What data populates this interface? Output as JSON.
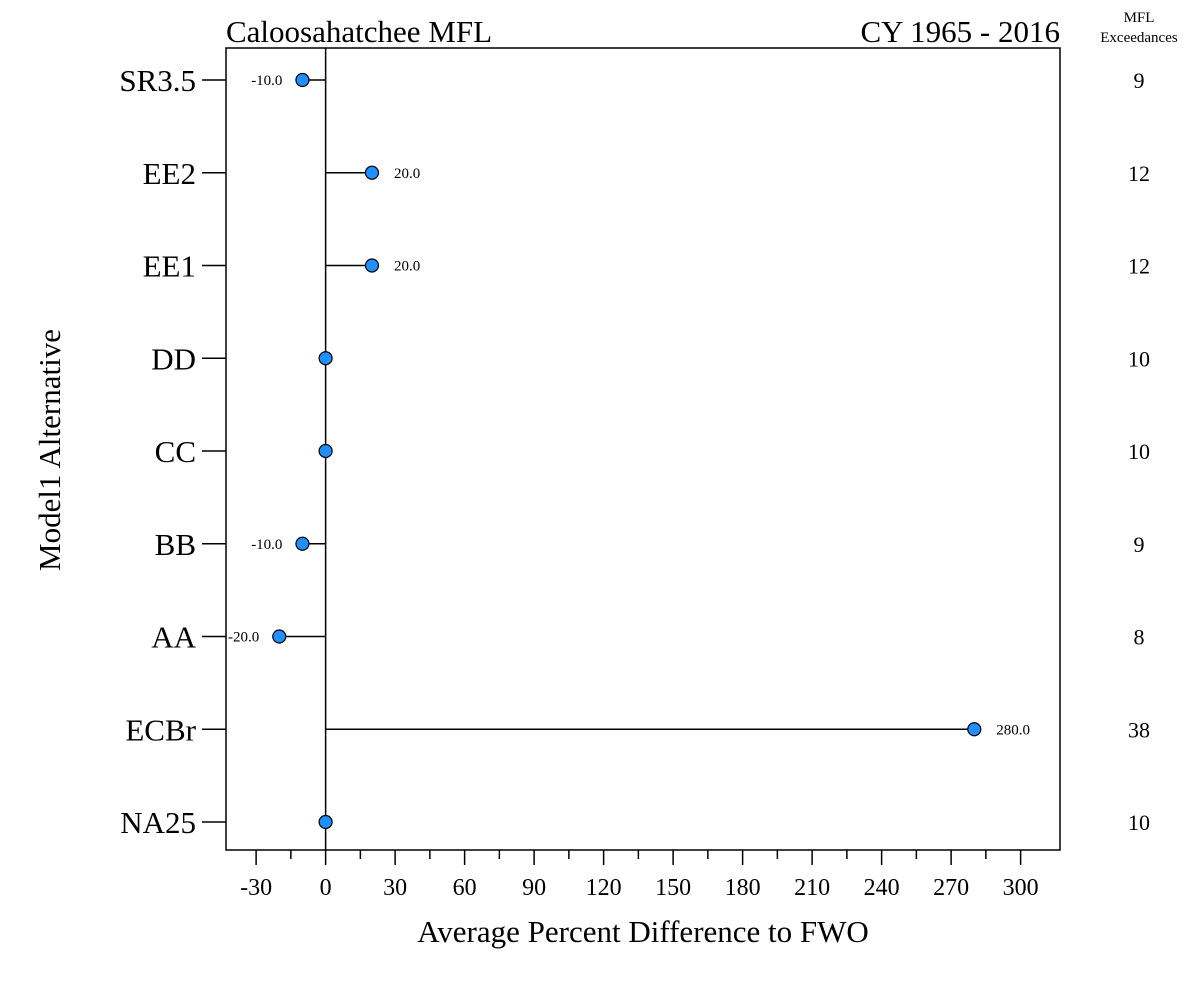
{
  "chart_data": {
    "type": "lollipop",
    "title_left": "Caloosahatchee MFL",
    "title_right": "CY 1965 - 2016",
    "right_header": [
      "MFL",
      "Exceedances"
    ],
    "xlabel": "Average Percent Difference to FWO",
    "ylabel": "Model1 Alternative",
    "xlim": [
      -43,
      317
    ],
    "xticks": [
      -30,
      0,
      30,
      60,
      90,
      120,
      150,
      180,
      210,
      240,
      270,
      300
    ],
    "xtick_labels": [
      "-30",
      "0",
      "30",
      "60",
      "90",
      "120",
      "150",
      "180",
      "210",
      "240",
      "270",
      "300"
    ],
    "minor_tick_step": 15,
    "marker_color": "#1e90ff",
    "categories": [
      "SR3.5",
      "EE2",
      "EE1",
      "DD",
      "CC",
      "BB",
      "AA",
      "ECBr",
      "NA25"
    ],
    "values": [
      -10,
      20,
      20,
      0,
      0,
      -10,
      -20,
      280,
      0
    ],
    "value_labels": [
      "-10.0",
      "20.0",
      "20.0",
      "",
      "",
      "-10.0",
      "-20.0",
      "280.0",
      ""
    ],
    "exceedances": [
      "9",
      "12",
      "12",
      "10",
      "10",
      "9",
      "8",
      "38",
      "10"
    ]
  }
}
